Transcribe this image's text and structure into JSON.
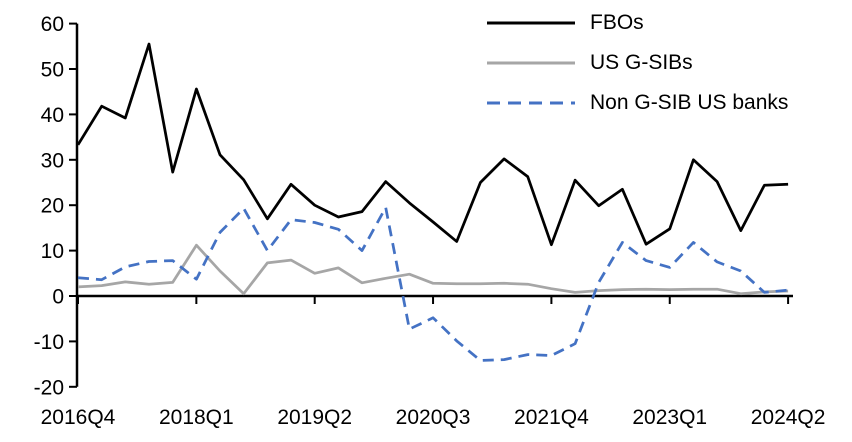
{
  "chart_data": {
    "type": "line",
    "title": "",
    "xlabel": "",
    "ylabel": "",
    "grid": false,
    "legend_position": "top-right",
    "ylim": [
      -20,
      60
    ],
    "y_ticks": [
      60,
      50,
      40,
      30,
      20,
      10,
      0,
      -10,
      -20
    ],
    "x_tick_labels": [
      "2016Q4",
      "2018Q1",
      "2019Q2",
      "2020Q3",
      "2021Q4",
      "2023Q1",
      "2024Q2"
    ],
    "x_tick_indices": [
      0,
      5,
      10,
      15,
      20,
      25,
      30
    ],
    "x_categories": [
      "2016Q4",
      "2017Q1",
      "2017Q2",
      "2017Q3",
      "2017Q4",
      "2018Q1",
      "2018Q2",
      "2018Q3",
      "2018Q4",
      "2019Q1",
      "2019Q2",
      "2019Q3",
      "2019Q4",
      "2020Q1",
      "2020Q2",
      "2020Q3",
      "2020Q4",
      "2021Q1",
      "2021Q2",
      "2021Q3",
      "2021Q4",
      "2022Q1",
      "2022Q2",
      "2022Q3",
      "2022Q4",
      "2023Q1",
      "2023Q2",
      "2023Q3",
      "2023Q4",
      "2024Q1",
      "2024Q2"
    ],
    "series": [
      {
        "id": "fbos",
        "name": "FBOs",
        "color": "#000000",
        "style": "solid",
        "values": [
          33.3,
          41.8,
          39.2,
          55.5,
          27.3,
          45.6,
          31.1,
          25.6,
          17.0,
          24.6,
          20.0,
          17.4,
          18.6,
          25.2,
          20.5,
          16.3,
          12.0,
          25.0,
          30.2,
          26.3,
          11.3,
          25.5,
          19.9,
          23.5,
          11.4,
          14.8,
          30.0,
          25.2,
          14.4,
          24.4,
          24.6
        ]
      },
      {
        "id": "us-gsibs",
        "name": "US G-SIBs",
        "color": "#A6A6A6",
        "style": "solid",
        "values": [
          2.0,
          2.3,
          3.1,
          2.6,
          3.0,
          11.2,
          5.5,
          0.5,
          7.3,
          7.9,
          5.0,
          6.2,
          2.9,
          3.9,
          4.8,
          2.8,
          2.7,
          2.7,
          2.8,
          2.6,
          1.6,
          0.8,
          1.2,
          1.4,
          1.5,
          1.4,
          1.5,
          1.5,
          0.5,
          0.9,
          1.1
        ]
      },
      {
        "id": "non-gsib-us-banks",
        "name": "Non G-SIB US banks",
        "color": "#4472C4",
        "style": "dashed",
        "values": [
          4.0,
          3.6,
          6.4,
          7.6,
          7.8,
          3.7,
          14.0,
          19.3,
          10.0,
          16.8,
          16.2,
          14.7,
          10.0,
          19.5,
          -7.3,
          -4.8,
          -9.9,
          -14.2,
          -14.0,
          -12.9,
          -13.1,
          -10.5,
          3.0,
          11.8,
          7.8,
          6.3,
          11.8,
          7.5,
          5.5,
          0.8,
          1.3
        ]
      }
    ]
  }
}
